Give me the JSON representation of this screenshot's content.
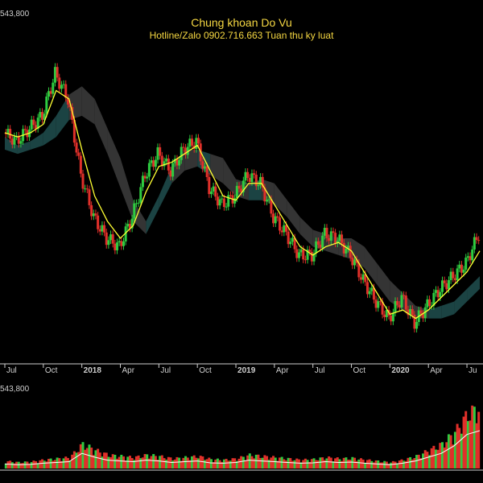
{
  "header": {
    "title": "Chung khoan Do Vu",
    "subtitle": "Hotline/Zalo 0902.716.663 Tuan thu ky luat"
  },
  "colors": {
    "background": "#000000",
    "up": "#2ecc40",
    "down": "#e0302a",
    "ma": "#ffff33",
    "cloud_dark": "#3a3a3a",
    "cloud_teal": "#1e4a4a",
    "axis": "#cfcfcf",
    "title": "#f5d742"
  },
  "chart_data": [
    {
      "type": "line",
      "panel": "price",
      "y_top_label": "543,800",
      "x_axis_ticks": [
        "Jul",
        "Oct",
        "2018",
        "Apr",
        "Jul",
        "Oct",
        "2019",
        "Apr",
        "Jul",
        "Oct",
        "2020",
        "Apr",
        "Ju"
      ],
      "bold_ticks": [
        "2018",
        "2019",
        "2020"
      ],
      "x_range": [
        "2017-07",
        "2020-08"
      ],
      "close_series": {
        "name": "",
        "x": [
          "2017-07",
          "2017-08",
          "2017-09",
          "2017-10",
          "2017-11",
          "2017-12",
          "2018-01",
          "2018-02",
          "2018-03",
          "2018-04",
          "2018-05",
          "2018-06",
          "2018-07",
          "2018-08",
          "2018-09",
          "2018-10",
          "2018-11",
          "2018-12",
          "2019-01",
          "2019-02",
          "2019-03",
          "2019-04",
          "2019-05",
          "2019-06",
          "2019-07",
          "2019-08",
          "2019-09",
          "2019-10",
          "2019-11",
          "2019-12",
          "2020-01",
          "2020-02",
          "2020-03",
          "2020-04",
          "2020-05",
          "2020-06",
          "2020-07",
          "2020-08"
        ],
        "values": [
          62,
          60,
          63,
          66,
          76,
          70,
          52,
          42,
          37,
          35,
          42,
          52,
          57,
          53,
          58,
          60,
          49,
          45,
          47,
          52,
          50,
          42,
          38,
          33,
          33,
          38,
          37,
          33,
          27,
          22,
          18,
          23,
          17,
          21,
          25,
          28,
          31,
          38
        ]
      },
      "ma_series": {
        "name": "",
        "values": [
          62,
          61,
          62,
          64,
          72,
          70,
          58,
          47,
          41,
          37,
          40,
          48,
          54,
          55,
          57,
          59,
          53,
          47,
          46,
          50,
          50,
          45,
          40,
          35,
          33,
          35,
          36,
          34,
          29,
          24,
          19,
          20,
          18,
          20,
          23,
          26,
          29,
          34
        ]
      },
      "cloud": {
        "upper": [
          61,
          59,
          60,
          62,
          66,
          71,
          73,
          70,
          63,
          56,
          46,
          41,
          47,
          54,
          58,
          58,
          57,
          56,
          51,
          50,
          51,
          50,
          46,
          42,
          39,
          38,
          37,
          37,
          35,
          31,
          27,
          24,
          21,
          20,
          21,
          22,
          25,
          28
        ],
        "lower": [
          58,
          57,
          58,
          59,
          61,
          65,
          66,
          64,
          57,
          49,
          41,
          38,
          44,
          50,
          53,
          54,
          52,
          50,
          47,
          46,
          46,
          45,
          42,
          38,
          35,
          34,
          33,
          32,
          30,
          26,
          22,
          20,
          18,
          18,
          18,
          19,
          22,
          25
        ]
      },
      "ylim": [
        8,
        82
      ]
    },
    {
      "type": "bar",
      "panel": "volume",
      "y_top_label": "543,800",
      "x": [
        "2017-07",
        "2017-08",
        "2017-09",
        "2017-10",
        "2017-11",
        "2017-12",
        "2018-01",
        "2018-02",
        "2018-03",
        "2018-04",
        "2018-05",
        "2018-06",
        "2018-07",
        "2018-08",
        "2018-09",
        "2018-10",
        "2018-11",
        "2018-12",
        "2019-01",
        "2019-02",
        "2019-03",
        "2019-04",
        "2019-05",
        "2019-06",
        "2019-07",
        "2019-08",
        "2019-09",
        "2019-10",
        "2019-11",
        "2019-12",
        "2020-01",
        "2020-02",
        "2020-03",
        "2020-04",
        "2020-05",
        "2020-06",
        "2020-07",
        "2020-08"
      ],
      "values": [
        12,
        10,
        11,
        14,
        16,
        18,
        40,
        30,
        22,
        20,
        18,
        22,
        20,
        16,
        18,
        20,
        15,
        14,
        16,
        22,
        20,
        18,
        16,
        14,
        15,
        18,
        16,
        17,
        14,
        12,
        10,
        14,
        20,
        30,
        40,
        60,
        90,
        100
      ],
      "ylim": [
        0,
        110
      ]
    }
  ]
}
